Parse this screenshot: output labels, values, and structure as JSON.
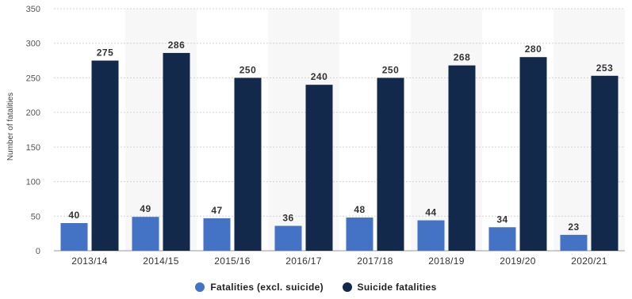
{
  "chart_data": {
    "type": "bar",
    "ylabel": "Number of fatalities",
    "xlabel": "",
    "title": "",
    "ylim": [
      0,
      350
    ],
    "yticks": [
      0,
      50,
      100,
      150,
      200,
      250,
      300,
      350
    ],
    "grid": true,
    "legend_position": "bottom-center",
    "categories": [
      "2013/14",
      "2014/15",
      "2015/16",
      "2016/17",
      "2017/18",
      "2018/19",
      "2019/20",
      "2020/21"
    ],
    "series": [
      {
        "name": "Fatalities (excl. suicide)",
        "color": "#4472c4",
        "values": [
          40,
          49,
          47,
          36,
          48,
          44,
          34,
          23
        ]
      },
      {
        "name": "Suicide fatalities",
        "color": "#13294b",
        "values": [
          275,
          286,
          250,
          240,
          250,
          268,
          280,
          253
        ]
      }
    ]
  }
}
